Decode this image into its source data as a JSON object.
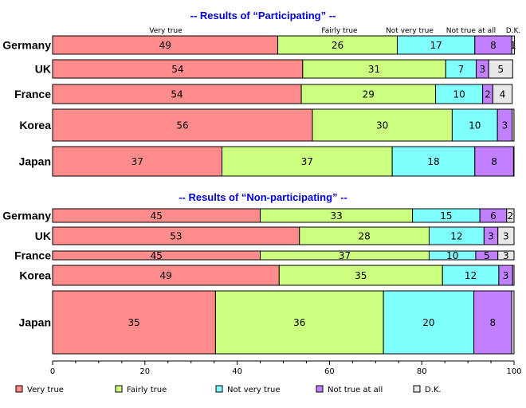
{
  "chart_data": {
    "type": "bar",
    "orientation": "horizontal",
    "stacked": true,
    "xlim": [
      0,
      100
    ],
    "xticks": [
      "0",
      "20",
      "40",
      "60",
      "80",
      "100"
    ],
    "categories_order": [
      "Very true",
      "Fairly true",
      "Not very true",
      "Not true at all",
      "D.K."
    ],
    "colors": {
      "Very true": "#ff8c8c",
      "Fairly true": "#ccff80",
      "Not very true": "#80ffff",
      "Not true at all": "#c080ff",
      "D.K.": "#e8e8e8"
    },
    "column_headers": [
      "Very true",
      "Fairly true",
      "Not very true",
      "Not true at all",
      "D.K."
    ],
    "legend": [
      "Very true",
      "Fairly true",
      "Not very true",
      "Not true at all",
      "D.K."
    ],
    "legend_position": "bottom",
    "panels": [
      {
        "title": "-- Results of “Participating” --",
        "rows": [
          {
            "country": "Germany",
            "values": [
              48.8,
              25.9,
              16.8,
              8.0,
              0.6
            ],
            "labels": [
              "49",
              "26",
              "17",
              "8",
              "1"
            ]
          },
          {
            "country": "UK",
            "values": [
              54.2,
              31.0,
              6.6,
              2.7,
              5.2
            ],
            "labels": [
              "54",
              "31",
              "7",
              "3",
              "5"
            ]
          },
          {
            "country": "France",
            "values": [
              53.9,
              29.1,
              10.2,
              2.2,
              4.2
            ],
            "labels": [
              "54",
              "29",
              "10",
              "2",
              "4"
            ]
          },
          {
            "country": "Korea",
            "values": [
              56.3,
              30.3,
              9.8,
              3.2,
              0.4
            ],
            "labels": [
              "56",
              "30",
              "10",
              "3",
              ""
            ]
          },
          {
            "country": "Japan",
            "values": [
              36.7,
              36.9,
              17.9,
              8.4,
              0.1
            ],
            "labels": [
              "37",
              "37",
              "18",
              "8",
              ""
            ]
          }
        ]
      },
      {
        "title": "-- Results of “Non-participating” --",
        "rows": [
          {
            "country": "Germany",
            "values": [
              45.0,
              33.0,
              14.6,
              5.8,
              1.6
            ],
            "labels": [
              "45",
              "33",
              "15",
              "6",
              "2"
            ]
          },
          {
            "country": "UK",
            "values": [
              53.5,
              28.1,
              11.9,
              3.0,
              3.5
            ],
            "labels": [
              "53",
              "28",
              "12",
              "3",
              "3"
            ]
          },
          {
            "country": "France",
            "values": [
              45.0,
              36.6,
              10.1,
              4.8,
              3.5
            ],
            "labels": [
              "45",
              "37",
              "10",
              "5",
              "3"
            ]
          },
          {
            "country": "Korea",
            "values": [
              49.1,
              35.4,
              12.2,
              3.0,
              0.3
            ],
            "labels": [
              "49",
              "35",
              "12",
              "3",
              ""
            ]
          },
          {
            "country": "Japan",
            "values": [
              35.3,
              36.4,
              19.6,
              8.2,
              0.5
            ],
            "labels": [
              "35",
              "36",
              "20",
              "8",
              ""
            ]
          }
        ]
      }
    ]
  }
}
